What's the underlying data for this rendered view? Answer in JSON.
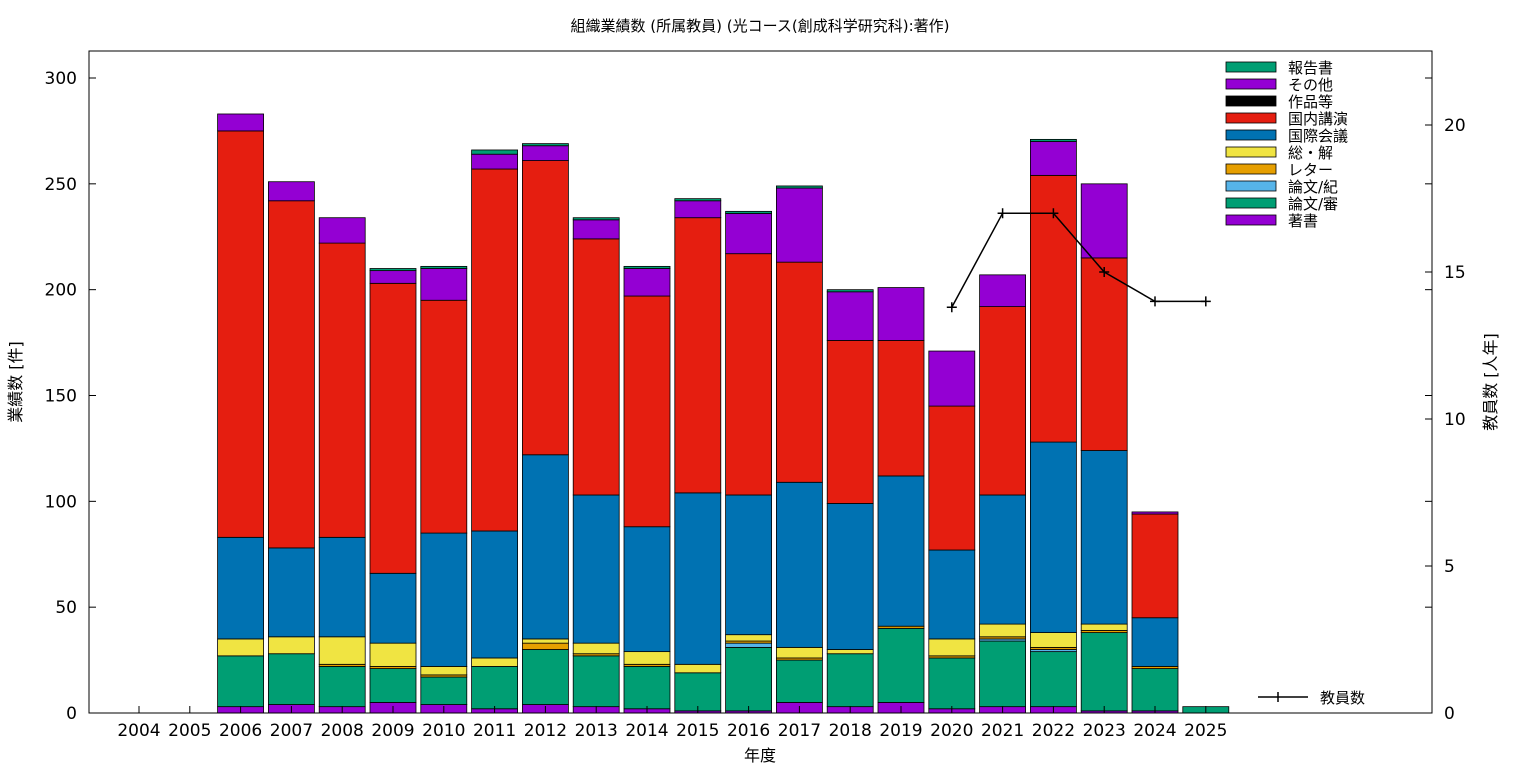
{
  "chart_data": {
    "type": "bar",
    "title": "組織業績数 (所属教員) (光コース(創成科学研究科):著作)",
    "xlabel": "年度",
    "ylabel": "業績数 [件]",
    "y2label": "教員数 [人年]",
    "categories": [
      "2004",
      "2005",
      "2006",
      "2007",
      "2008",
      "2009",
      "2010",
      "2011",
      "2012",
      "2013",
      "2014",
      "2015",
      "2016",
      "2017",
      "2018",
      "2019",
      "2020",
      "2021",
      "2022",
      "2023",
      "2024",
      "2025"
    ],
    "ylim": [
      0,
      300
    ],
    "yticks": [
      0,
      50,
      100,
      150,
      200,
      250,
      300
    ],
    "y2lim": [
      0,
      20
    ],
    "y2ticks": [
      0,
      5,
      10,
      15,
      20
    ],
    "stacked": true,
    "grid": false,
    "legend_position": "top-right",
    "series": [
      {
        "name": "著書",
        "color": "#9400d3",
        "values": [
          0,
          0,
          3,
          4,
          3,
          5,
          4,
          2,
          4,
          3,
          2,
          1,
          1,
          5,
          3,
          5,
          2,
          3,
          3,
          1,
          1,
          0
        ]
      },
      {
        "name": "論文/審",
        "color": "#009e73",
        "values": [
          0,
          0,
          24,
          24,
          19,
          16,
          13,
          20,
          26,
          24,
          20,
          18,
          30,
          20,
          25,
          35,
          24,
          31,
          26,
          37,
          20,
          3
        ]
      },
      {
        "name": "論文/紀",
        "color": "#56b4e9",
        "values": [
          0,
          0,
          0,
          0,
          0,
          0,
          0,
          0,
          0,
          0,
          0,
          0,
          2,
          0,
          0,
          0,
          0,
          1,
          1,
          0,
          0,
          0
        ]
      },
      {
        "name": "レター",
        "color": "#e69f00",
        "values": [
          0,
          0,
          0,
          0,
          1,
          1,
          1,
          0,
          3,
          1,
          1,
          0,
          1,
          1,
          0,
          1,
          1,
          1,
          1,
          1,
          1,
          0
        ]
      },
      {
        "name": "総・解",
        "color": "#f0e442",
        "values": [
          0,
          0,
          8,
          8,
          13,
          11,
          4,
          4,
          2,
          5,
          6,
          4,
          3,
          5,
          2,
          0,
          8,
          6,
          7,
          3,
          0,
          0
        ]
      },
      {
        "name": "国際会議",
        "color": "#0072b2",
        "values": [
          0,
          0,
          48,
          42,
          47,
          33,
          63,
          60,
          87,
          70,
          59,
          81,
          66,
          78,
          69,
          71,
          42,
          61,
          90,
          82,
          23,
          0
        ]
      },
      {
        "name": "国内講演",
        "color": "#e51e10",
        "values": [
          0,
          0,
          192,
          164,
          139,
          137,
          110,
          171,
          139,
          121,
          109,
          130,
          114,
          104,
          77,
          64,
          68,
          89,
          126,
          91,
          49,
          0
        ]
      },
      {
        "name": "作品等",
        "color": "#000000",
        "values": [
          0,
          0,
          0,
          0,
          0,
          0,
          0,
          0,
          0,
          0,
          0,
          0,
          0,
          0,
          0,
          0,
          0,
          0,
          0,
          0,
          0,
          0
        ]
      },
      {
        "name": "その他",
        "color": "#9400d3",
        "values": [
          0,
          0,
          8,
          9,
          12,
          6,
          15,
          7,
          7,
          9,
          13,
          8,
          19,
          35,
          23,
          25,
          26,
          15,
          16,
          35,
          1,
          0
        ]
      },
      {
        "name": "報告書",
        "color": "#009e73",
        "values": [
          0,
          0,
          0,
          0,
          0,
          1,
          1,
          2,
          1,
          1,
          1,
          1,
          1,
          1,
          1,
          0,
          0,
          0,
          1,
          0,
          0,
          0
        ]
      }
    ],
    "line_series": {
      "name": "教員数",
      "color": "#000000",
      "axis": "y2",
      "values": [
        null,
        null,
        null,
        null,
        null,
        null,
        null,
        null,
        null,
        null,
        null,
        null,
        null,
        null,
        null,
        null,
        13.8,
        17,
        17,
        15,
        14,
        14
      ]
    }
  }
}
